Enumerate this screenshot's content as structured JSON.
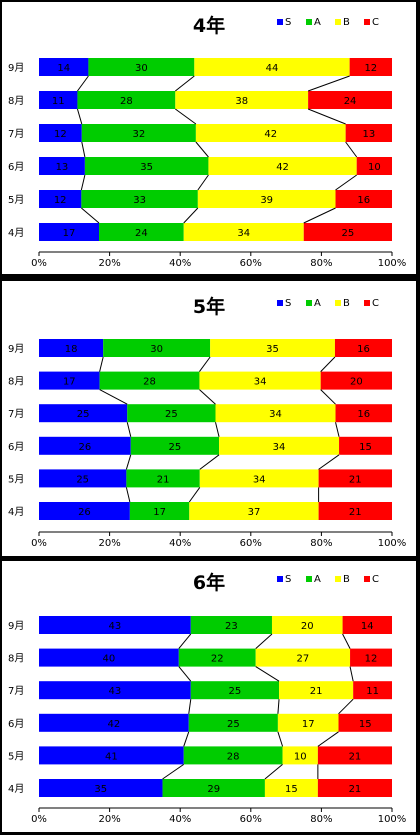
{
  "chart_data": [
    {
      "type": "bar",
      "stacked": "percent",
      "orientation": "horizontal",
      "title": "4年",
      "legend_position": "top-right",
      "categories": [
        "9月",
        "8月",
        "7月",
        "6月",
        "5月",
        "4月"
      ],
      "series": [
        {
          "name": "S",
          "color": "#0000ff",
          "values": [
            14,
            11,
            12,
            13,
            12,
            17
          ]
        },
        {
          "name": "A",
          "color": "#00cc00",
          "values": [
            30,
            28,
            32,
            35,
            33,
            24
          ]
        },
        {
          "name": "B",
          "color": "#ffff00",
          "values": [
            44,
            38,
            42,
            42,
            39,
            34
          ]
        },
        {
          "name": "C",
          "color": "#ff0000",
          "values": [
            12,
            24,
            13,
            10,
            16,
            25
          ]
        }
      ],
      "xlim": [
        0,
        100
      ],
      "xticks": [
        "0%",
        "20%",
        "40%",
        "60%",
        "80%",
        "100%"
      ],
      "series_lines": true
    },
    {
      "type": "bar",
      "stacked": "percent",
      "orientation": "horizontal",
      "title": "5年",
      "legend_position": "top-right",
      "categories": [
        "9月",
        "8月",
        "7月",
        "6月",
        "5月",
        "4月"
      ],
      "series": [
        {
          "name": "S",
          "color": "#0000ff",
          "values": [
            18,
            17,
            25,
            26,
            25,
            26
          ]
        },
        {
          "name": "A",
          "color": "#00cc00",
          "values": [
            30,
            28,
            25,
            25,
            21,
            17
          ]
        },
        {
          "name": "B",
          "color": "#ffff00",
          "values": [
            35,
            34,
            34,
            34,
            34,
            37
          ]
        },
        {
          "name": "C",
          "color": "#ff0000",
          "values": [
            16,
            20,
            16,
            15,
            21,
            21
          ]
        }
      ],
      "xlim": [
        0,
        100
      ],
      "xticks": [
        "0%",
        "20%",
        "40%",
        "60%",
        "80%",
        "100%"
      ],
      "series_lines": true
    },
    {
      "type": "bar",
      "stacked": "percent",
      "orientation": "horizontal",
      "title": "6年",
      "legend_position": "top-right",
      "categories": [
        "9月",
        "8月",
        "7月",
        "6月",
        "5月",
        "4月"
      ],
      "series": [
        {
          "name": "S",
          "color": "#0000ff",
          "values": [
            43,
            40,
            43,
            42,
            41,
            35
          ]
        },
        {
          "name": "A",
          "color": "#00cc00",
          "values": [
            23,
            22,
            25,
            25,
            28,
            29
          ]
        },
        {
          "name": "B",
          "color": "#ffff00",
          "values": [
            20,
            27,
            21,
            17,
            10,
            15
          ]
        },
        {
          "name": "C",
          "color": "#ff0000",
          "values": [
            14,
            12,
            11,
            15,
            21,
            21
          ]
        }
      ],
      "xlim": [
        0,
        100
      ],
      "xticks": [
        "0%",
        "20%",
        "40%",
        "60%",
        "80%",
        "100%"
      ],
      "series_lines": true
    }
  ]
}
